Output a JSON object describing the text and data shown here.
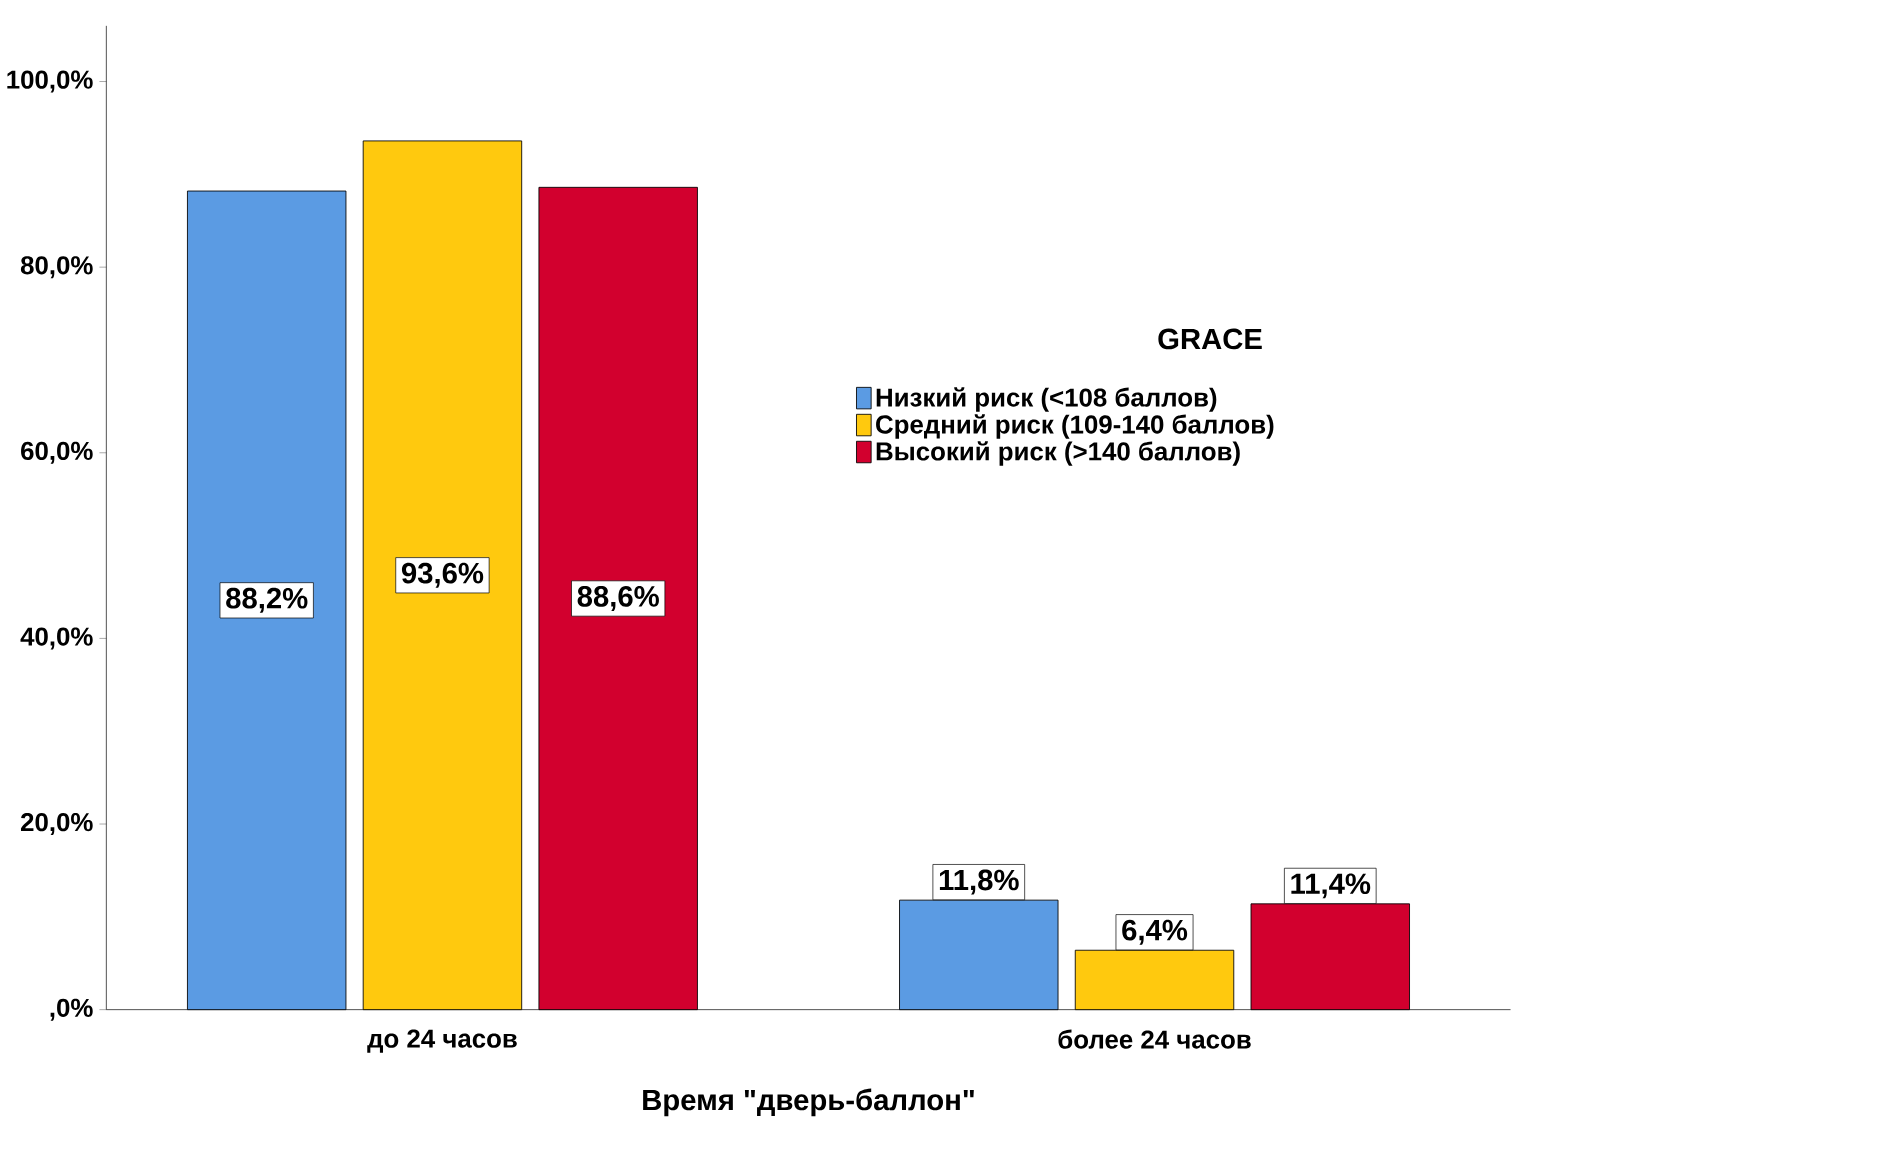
{
  "chart_data": {
    "type": "bar",
    "categories": [
      "до 24 часов",
      "более 24 часов"
    ],
    "xlabel": "Время \"дверь-баллон\"",
    "legend_title": "GRACE",
    "legend": "right",
    "ylim": [
      0,
      106
    ],
    "yticks": [
      {
        "value": 0,
        "label": ",0%"
      },
      {
        "value": 20,
        "label": "20,0%"
      },
      {
        "value": 40,
        "label": "40,0%"
      },
      {
        "value": 60,
        "label": "60,0%"
      },
      {
        "value": 80,
        "label": "80,0%"
      },
      {
        "value": 100,
        "label": "100,0%"
      }
    ],
    "series": [
      {
        "name": "Низкий риск (<108 баллов)",
        "color": "#5b9be3",
        "values": [
          88.2,
          11.8
        ],
        "value_labels": [
          "88,2%",
          "11,8%"
        ]
      },
      {
        "name": "Средний риск (109-140 баллов)",
        "color": "#ffc90e",
        "values": [
          93.6,
          6.4
        ],
        "value_labels": [
          "93,6%",
          "6,4%"
        ]
      },
      {
        "name": "Высокий риск (>140 баллов)",
        "color": "#d2002e",
        "values": [
          88.6,
          11.4
        ],
        "value_labels": [
          "88,6%",
          "11,4%"
        ]
      }
    ]
  }
}
